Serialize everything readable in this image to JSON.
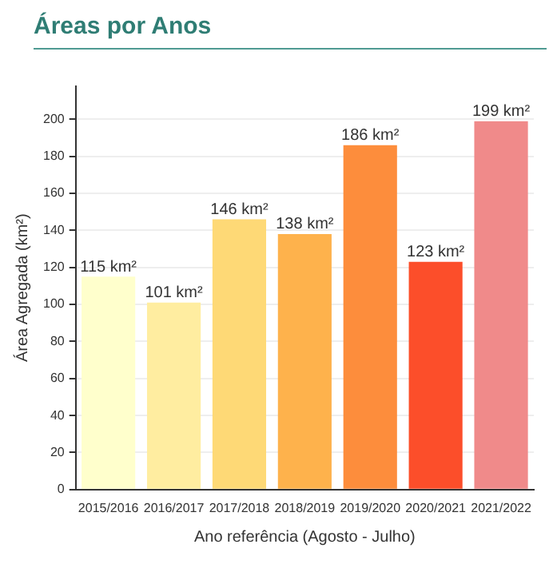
{
  "chart_data": {
    "type": "bar",
    "title": "Áreas por Anos",
    "xlabel": "Ano referência (Agosto - Julho)",
    "ylabel": "Área Agregada (km²)",
    "categories": [
      "2015/2016",
      "2016/2017",
      "2017/2018",
      "2018/2019",
      "2019/2020",
      "2020/2021",
      "2021/2022"
    ],
    "values": [
      115,
      101,
      146,
      138,
      186,
      123,
      199
    ],
    "value_labels": [
      "115 km²",
      "101 km²",
      "146 km²",
      "138 km²",
      "186 km²",
      "123 km²",
      "199 km²"
    ],
    "colors": [
      "#ffffcc",
      "#ffeda0",
      "#fed976",
      "#feb24c",
      "#fd8d3c",
      "#fc4e2a",
      "#f08a8a"
    ],
    "ylim": [
      0,
      218
    ],
    "yticks": [
      0,
      20,
      40,
      60,
      80,
      100,
      120,
      140,
      160,
      180,
      200
    ],
    "grid": "y"
  }
}
